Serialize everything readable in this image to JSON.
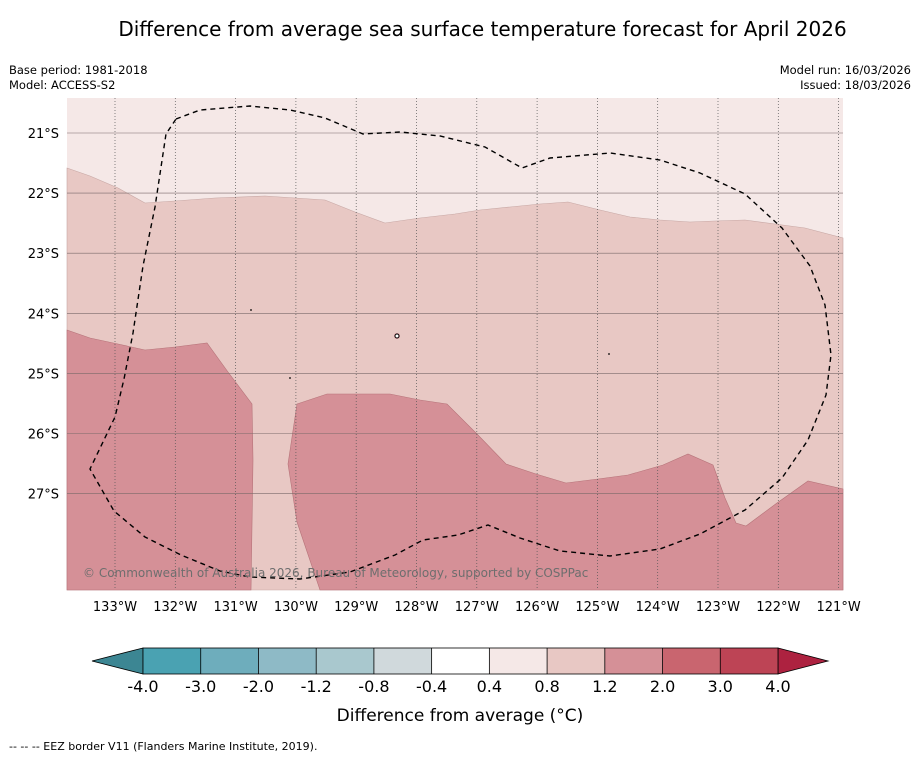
{
  "title": "Difference from average sea surface temperature forecast for April 2026",
  "header": {
    "base_period": "Base period: 1981-2018",
    "model": "Model: ACCESS-S2",
    "model_run": "Model run: 16/03/2026",
    "issued": "Issued: 18/03/2026"
  },
  "map": {
    "lat_labels": [
      "21°S",
      "22°S",
      "23°S",
      "24°S",
      "25°S",
      "26°S",
      "27°S"
    ],
    "lon_labels": [
      "133°W",
      "132°W",
      "131°W",
      "130°W",
      "129°W",
      "128°W",
      "127°W",
      "126°W",
      "125°W",
      "124°W",
      "123°W",
      "122°W",
      "121°W"
    ],
    "copyright": "© Commonwealth of Australia 2026, Bureau of Meteorology, supported by COSPPac",
    "region_colors": {
      "band_0.4_0.8": "#f5e8e7",
      "band_0.8_1.2": "#e8c8c4",
      "band_1.2_2.0": "#d59097"
    }
  },
  "colorbar": {
    "levels": [
      "-4.0",
      "-3.0",
      "-2.0",
      "-1.2",
      "-0.8",
      "-0.4",
      "0.4",
      "0.8",
      "1.2",
      "2.0",
      "3.0",
      "4.0"
    ],
    "colors": [
      "#4aa2b2",
      "#6eadbc",
      "#8ebac6",
      "#a9c8ce",
      "#d0d9dc",
      "#ffffff",
      "#f5e8e7",
      "#e8c8c4",
      "#d59097",
      "#c9656f",
      "#bd4455"
    ],
    "extend_low_color": "#3c8693",
    "extend_high_color": "#ad2240",
    "label": "Difference from average (°C)"
  },
  "footnote": "--  --  -- EEZ border V11 (Flanders Marine Institute, 2019)."
}
